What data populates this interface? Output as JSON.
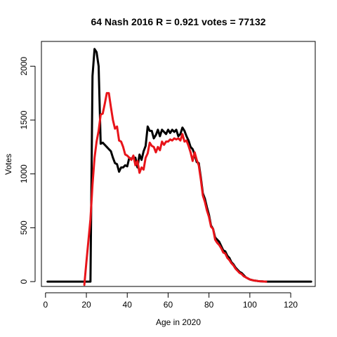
{
  "chart_data": {
    "type": "line",
    "title": "64 Nash 2016 R = 0.921 votes = 77132",
    "xlabel": "Age in 2020",
    "ylabel": "Votes",
    "xlim": [
      -2,
      132
    ],
    "ylim": [
      -45,
      2230
    ],
    "xticks": [
      0,
      20,
      40,
      60,
      80,
      100,
      120
    ],
    "yticks": [
      0,
      500,
      1000,
      1500,
      2000
    ],
    "colors": {
      "black": "#000000",
      "red": "#e8141a"
    },
    "series": [
      {
        "color": "black",
        "x": [
          1,
          18,
          19,
          20,
          21,
          22,
          23,
          24,
          25,
          26,
          27,
          28,
          29,
          30,
          31,
          32,
          33,
          34,
          35,
          36,
          37,
          38,
          39,
          40,
          41,
          42,
          43,
          44,
          45,
          46,
          47,
          48,
          49,
          50,
          51,
          52,
          53,
          54,
          55,
          56,
          57,
          58,
          59,
          60,
          61,
          62,
          63,
          64,
          65,
          66,
          67,
          68,
          69,
          70,
          71,
          72,
          73,
          74,
          75,
          76,
          77,
          78,
          79,
          80,
          81,
          82,
          83,
          84,
          85,
          86,
          87,
          88,
          89,
          90,
          91,
          92,
          93,
          94,
          95,
          96,
          97,
          98,
          99,
          100,
          101,
          102,
          103,
          104,
          105,
          106,
          107,
          108,
          109,
          110,
          115,
          120,
          125,
          130
        ],
        "y": [
          0,
          0,
          0,
          0,
          0,
          0,
          1910,
          2160,
          2130,
          2000,
          1280,
          1290,
          1270,
          1250,
          1230,
          1210,
          1150,
          1100,
          1090,
          1020,
          1060,
          1060,
          1080,
          1070,
          1150,
          1140,
          1150,
          1150,
          1060,
          1180,
          1130,
          1210,
          1260,
          1440,
          1400,
          1400,
          1330,
          1360,
          1410,
          1350,
          1410,
          1390,
          1370,
          1410,
          1380,
          1410,
          1390,
          1410,
          1350,
          1370,
          1430,
          1400,
          1350,
          1310,
          1250,
          1230,
          1180,
          1110,
          1100,
          970,
          820,
          770,
          690,
          620,
          520,
          490,
          410,
          390,
          370,
          330,
          290,
          280,
          240,
          220,
          180,
          160,
          130,
          110,
          90,
          80,
          60,
          40,
          30,
          20,
          15,
          10,
          8,
          5,
          3,
          2,
          1,
          0,
          0,
          0,
          0,
          0,
          0,
          0
        ]
      },
      {
        "color": "red",
        "x": [
          19,
          20,
          21,
          22,
          23,
          24,
          25,
          26,
          27,
          28,
          29,
          30,
          31,
          32,
          33,
          34,
          35,
          36,
          37,
          38,
          39,
          40,
          41,
          42,
          43,
          44,
          45,
          46,
          47,
          48,
          49,
          50,
          51,
          52,
          53,
          54,
          55,
          56,
          57,
          58,
          59,
          60,
          61,
          62,
          63,
          64,
          65,
          66,
          67,
          68,
          69,
          70,
          71,
          72,
          73,
          74,
          75,
          76,
          77,
          78,
          79,
          80,
          81,
          82,
          83,
          84,
          85,
          86,
          87,
          88,
          89,
          90,
          91,
          92,
          93,
          94,
          95,
          96,
          97,
          98,
          99,
          100,
          101,
          102,
          103,
          104,
          105,
          106,
          107,
          108
        ],
        "y": [
          -30,
          180,
          380,
          580,
          900,
          1150,
          1300,
          1400,
          1550,
          1560,
          1650,
          1750,
          1750,
          1620,
          1500,
          1420,
          1440,
          1310,
          1300,
          1250,
          1180,
          1170,
          1150,
          1130,
          1170,
          1080,
          1120,
          1010,
          1060,
          1040,
          1150,
          1190,
          1290,
          1260,
          1250,
          1200,
          1250,
          1220,
          1300,
          1270,
          1300,
          1300,
          1320,
          1310,
          1330,
          1320,
          1330,
          1310,
          1370,
          1300,
          1310,
          1260,
          1200,
          1120,
          1200,
          1130,
          1080,
          950,
          800,
          740,
          660,
          600,
          510,
          490,
          390,
          360,
          340,
          310,
          270,
          260,
          220,
          200,
          170,
          150,
          120,
          100,
          80,
          70,
          50,
          40,
          30,
          20,
          15,
          10,
          8,
          5,
          3,
          2,
          1,
          0
        ]
      }
    ]
  }
}
